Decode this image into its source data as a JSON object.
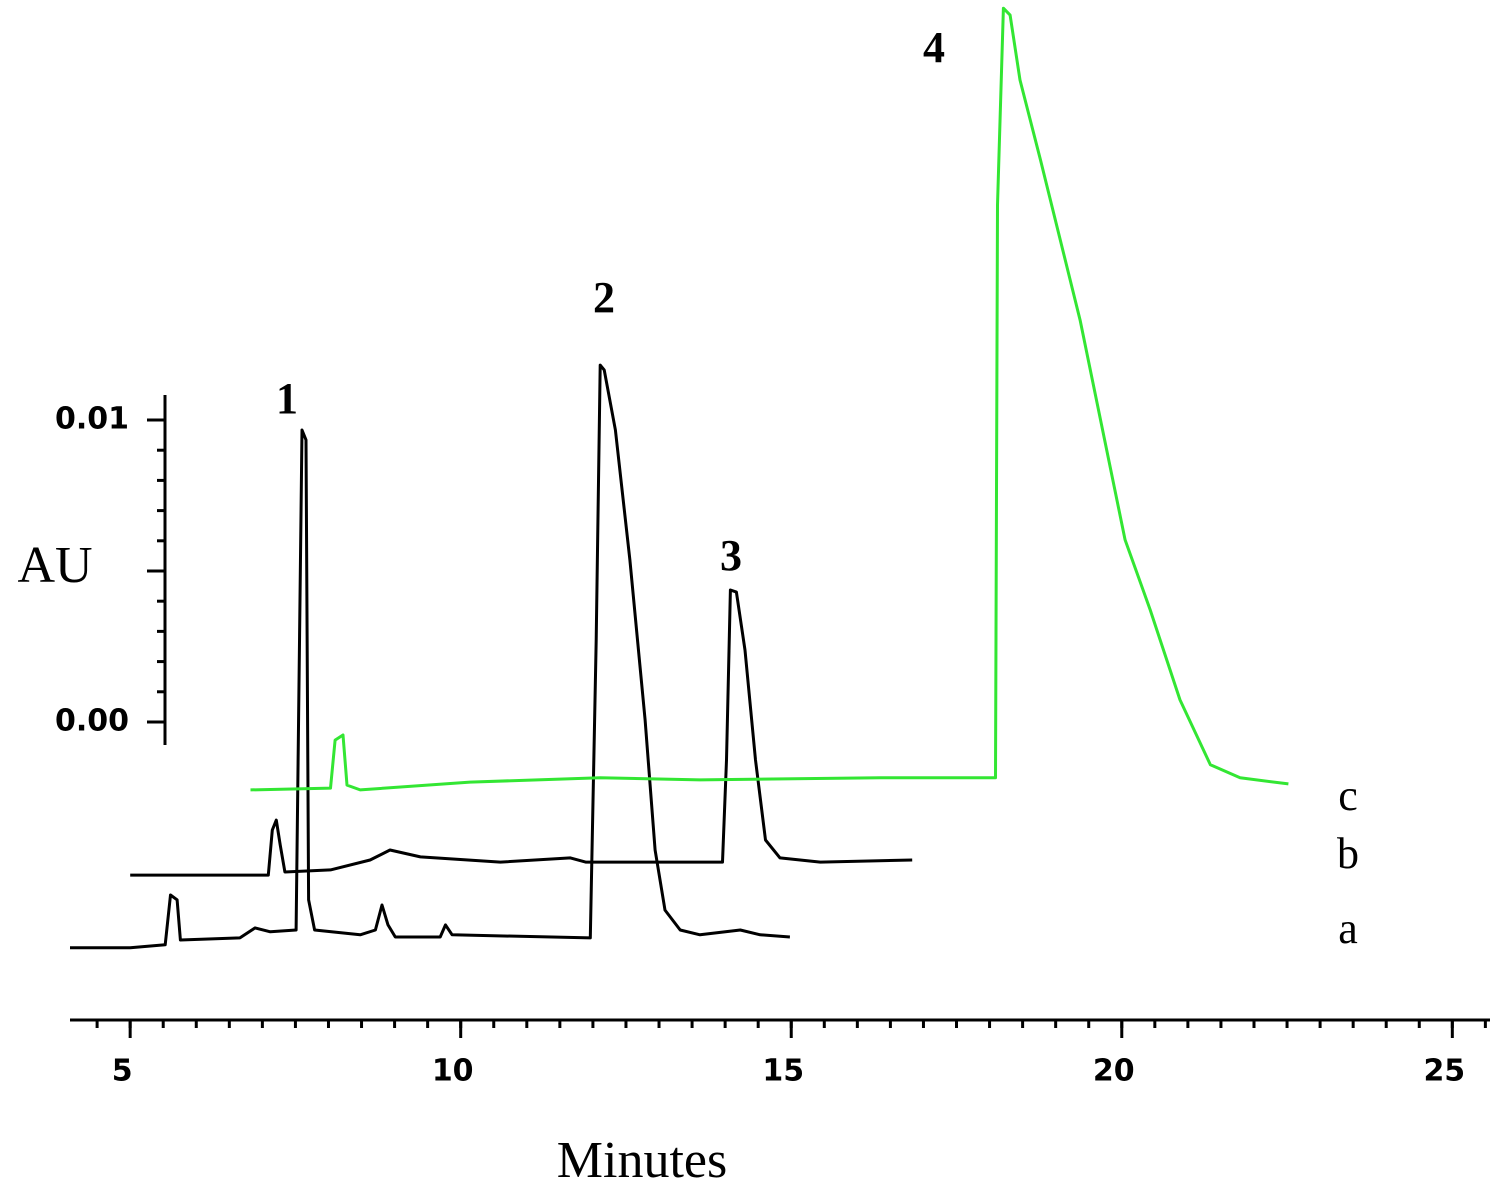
{
  "chart_data": {
    "type": "line",
    "y_label": "AU",
    "x_label": "Minutes",
    "xlim": [
      4.09,
      25.57
    ],
    "xticks": [
      5,
      10,
      15,
      20,
      25
    ],
    "ylim": [
      -0.00987,
      0.02391
    ],
    "yticks": [
      {
        "value": 0,
        "label": "0.00"
      },
      {
        "value": 0.01,
        "label": "0.01"
      }
    ],
    "annotations": [
      "1",
      "2",
      "3",
      "4"
    ],
    "series": [
      {
        "name": "a",
        "color": "#000000",
        "x": [
          4.09,
          5.0,
          5.53,
          5.61,
          5.71,
          5.76,
          6.66,
          6.89,
          7.12,
          7.51,
          7.6,
          7.66,
          7.7,
          7.79,
          8.48,
          8.71,
          8.81,
          8.9,
          9.01,
          9.69,
          9.77,
          9.87,
          11.96,
          12.05,
          12.11,
          12.17,
          12.34,
          12.56,
          12.79,
          12.94,
          13.09,
          13.32,
          13.62,
          14.23,
          14.53,
          14.98
        ],
        "values": [
          -0.00748,
          -0.00748,
          -0.00738,
          -0.00573,
          -0.00589,
          -0.00722,
          -0.00715,
          -0.00682,
          -0.00695,
          -0.00689,
          0.00967,
          0.00934,
          -0.00589,
          -0.00689,
          -0.00705,
          -0.00689,
          -0.00606,
          -0.00672,
          -0.00712,
          -0.00712,
          -0.00672,
          -0.00705,
          -0.00715,
          0.00272,
          0.01182,
          0.01166,
          0.00967,
          0.00536,
          7e-05,
          -0.00424,
          -0.00623,
          -0.00689,
          -0.00705,
          -0.00689,
          -0.00705,
          -0.00712
        ]
      },
      {
        "name": "b",
        "color": "#000000",
        "x": [
          5.0,
          7.09,
          7.15,
          7.21,
          7.27,
          7.34,
          8.03,
          8.63,
          8.93,
          9.39,
          10.6,
          11.66,
          11.89,
          13.96,
          14.02,
          14.08,
          14.17,
          14.3,
          14.46,
          14.61,
          14.83,
          15.44,
          16.83
        ],
        "values": [
          -0.00507,
          -0.00507,
          -0.00358,
          -0.00325,
          -0.00407,
          -0.00497,
          -0.0049,
          -0.00457,
          -0.00424,
          -0.00447,
          -0.00464,
          -0.0045,
          -0.00464,
          -0.00464,
          -0.00126,
          0.00437,
          0.0043,
          0.00238,
          -0.00126,
          -0.00391,
          -0.0045,
          -0.00464,
          -0.00457
        ]
      },
      {
        "name": "c",
        "color": "#33e633",
        "x": [
          6.82,
          8.03,
          8.1,
          8.22,
          8.28,
          8.48,
          10.14,
          12.11,
          13.62,
          16.35,
          18.09,
          18.12,
          18.21,
          18.31,
          18.46,
          18.77,
          19.37,
          20.05,
          20.43,
          20.88,
          21.34,
          21.79,
          22.52
        ],
        "values": [
          -0.00225,
          -0.00219,
          -0.0006,
          -0.00043,
          -0.00209,
          -0.00225,
          -0.00199,
          -0.00185,
          -0.00192,
          -0.00185,
          -0.00185,
          0.01712,
          0.02364,
          0.02341,
          0.02126,
          0.01861,
          0.01331,
          0.00603,
          0.00371,
          0.00073,
          -0.00142,
          -0.00185,
          -0.00205
        ]
      }
    ]
  }
}
